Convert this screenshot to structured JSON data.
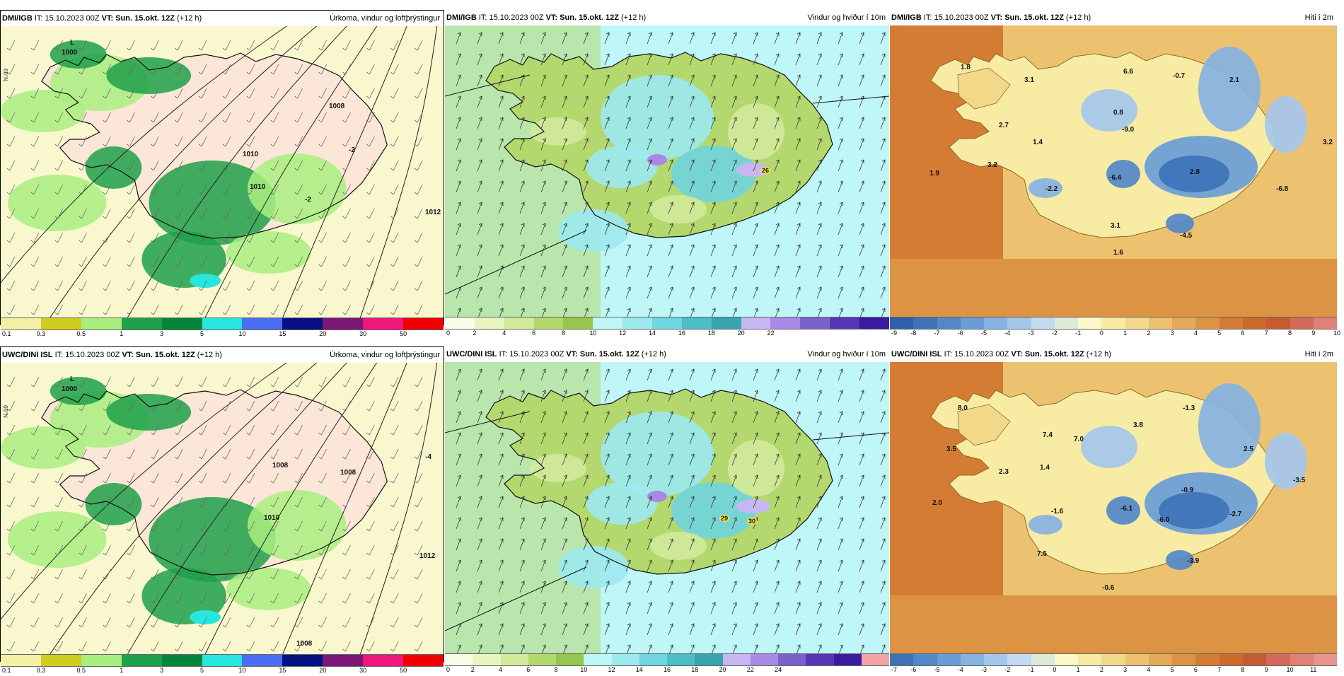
{
  "panels": [
    {
      "id": "p1",
      "model": "DMI/IGB",
      "it": "IT: 15.10.2023 00Z",
      "vt_label": "VT:",
      "vt": "Sun. 15.okt. 12Z",
      "lead": "(+12 h)",
      "title": "Úrkoma, vindur og loftþrýstingur",
      "kind": "precip",
      "legend_colors": [
        "#f3f0a6",
        "#cfcc22",
        "#a9ef80",
        "#1fa04a",
        "#05853c",
        "#27e6e0",
        "#4a6ef2",
        "#071080",
        "#7a1675",
        "#f0167c",
        "#f00000"
      ],
      "legend_ticks": [
        "0.1",
        "0.3",
        "0.5",
        "1",
        "3",
        "5",
        "10",
        "15",
        "20",
        "30",
        "50"
      ],
      "labels": [
        {
          "t": "L"
        },
        {
          "t": "1000"
        },
        {
          "t": "1008"
        },
        {
          "t": "1010"
        },
        {
          "t": "1010"
        },
        {
          "t": "1012"
        },
        {
          "t": "-2"
        },
        {
          "t": "-2"
        }
      ],
      "lat": "66°N"
    },
    {
      "id": "p2",
      "model": "DMI/IGB",
      "it": "IT: 15.10.2023 00Z",
      "vt_label": "VT:",
      "vt": "Sun. 15.okt. 12Z",
      "lead": "(+12 h)",
      "title": "Vindur og hviður í 10m",
      "kind": "wind",
      "legend_colors": [
        "#fcfde8",
        "#e8f5bf",
        "#d2ea9c",
        "#b3d86d",
        "#95c64d",
        "#bff6f8",
        "#9ce9ee",
        "#6fd5de",
        "#4bbec6",
        "#38a5ae",
        "#c6b6f2",
        "#a88ae6",
        "#7a62cc",
        "#5536b5",
        "#3a1aa0"
      ],
      "legend_ticks": [
        "0",
        "2",
        "4",
        "6",
        "8",
        "10",
        "12",
        "14",
        "16",
        "18",
        "20",
        "22"
      ],
      "labels": [
        {
          "t": "26"
        }
      ]
    },
    {
      "id": "p3",
      "model": "DMI/IGB",
      "it": "IT: 15.10.2023 00Z",
      "vt_label": "VT:",
      "vt": "Sun. 15.okt. 12Z",
      "lead": "(+12 h)",
      "title": "Hiti í 2m",
      "kind": "temp",
      "legend_colors": [
        "#2f5fa8",
        "#3f73b8",
        "#5288c8",
        "#6a9dd6",
        "#86b2e2",
        "#a4c7ec",
        "#c2daf2",
        "#dcebd8",
        "#fbf7c6",
        "#f8eba4",
        "#f2d98a",
        "#ecc270",
        "#e4aa58",
        "#dc9344",
        "#d47c34",
        "#cc6a2c",
        "#c65a30",
        "#d46a5a",
        "#e08078"
      ],
      "legend_ticks": [
        "-9",
        "-8",
        "-7",
        "-6",
        "-5",
        "-4",
        "-3",
        "-2",
        "-1",
        "0",
        "1",
        "2",
        "3",
        "4",
        "5",
        "6",
        "7",
        "8",
        "9",
        "10"
      ],
      "labels": [
        {
          "t": "1.8"
        },
        {
          "t": "3.1"
        },
        {
          "t": "6.6"
        },
        {
          "t": "-0.7"
        },
        {
          "t": "2.1"
        },
        {
          "t": "0.8"
        },
        {
          "t": "-9.0"
        },
        {
          "t": "2.7"
        },
        {
          "t": "1.4"
        },
        {
          "t": "3.2"
        },
        {
          "t": "3.2"
        },
        {
          "t": "1.9"
        },
        {
          "t": "-2.2"
        },
        {
          "t": "-6.4"
        },
        {
          "t": "2.8"
        },
        {
          "t": "-6.8"
        },
        {
          "t": "3.1"
        },
        {
          "t": "-4.5"
        },
        {
          "t": "1.6"
        }
      ]
    },
    {
      "id": "p4",
      "model": "UWC/DINI ISL",
      "it": "IT: 15.10.2023 00Z",
      "vt_label": "VT:",
      "vt": "Sun. 15.okt. 12Z",
      "lead": "(+12 h)",
      "title": "Úrkoma, vindur og loftþrýstingur",
      "kind": "precip",
      "legend_colors": [
        "#f3f0a6",
        "#cfcc22",
        "#a9ef80",
        "#1fa04a",
        "#05853c",
        "#27e6e0",
        "#4a6ef2",
        "#071080",
        "#7a1675",
        "#f0167c",
        "#f00000"
      ],
      "legend_ticks": [
        "0.1",
        "0.3",
        "0.5",
        "1",
        "3",
        "5",
        "10",
        "15",
        "20",
        "30",
        "50"
      ],
      "labels": [
        {
          "t": "L"
        },
        {
          "t": "1000"
        },
        {
          "t": "1008"
        },
        {
          "t": "1008"
        },
        {
          "t": "1010"
        },
        {
          "t": "1012"
        },
        {
          "t": "1008"
        },
        {
          "t": "-4"
        }
      ],
      "lat": "66°N"
    },
    {
      "id": "p5",
      "model": "UWC/DINI ISL",
      "it": "IT: 15.10.2023 00Z",
      "vt_label": "VT:",
      "vt": "Sun. 15.okt. 12Z",
      "lead": "(+12 h)",
      "title": "Vindur og hviður í 10m",
      "kind": "wind",
      "legend_colors": [
        "#fcfde8",
        "#e8f5bf",
        "#d2ea9c",
        "#b3d86d",
        "#95c64d",
        "#bff6f8",
        "#9ce9ee",
        "#6fd5de",
        "#4bbec6",
        "#38a5ae",
        "#c6b6f2",
        "#a88ae6",
        "#7a62cc",
        "#5536b5",
        "#3a1aa0",
        "#f2a4a4"
      ],
      "legend_ticks": [
        "0",
        "2",
        "4",
        "6",
        "8",
        "10",
        "12",
        "14",
        "16",
        "18",
        "20",
        "22",
        "24"
      ],
      "labels": [
        {
          "t": "29"
        },
        {
          "t": "30"
        }
      ]
    },
    {
      "id": "p6",
      "model": "UWC/DINI ISL",
      "it": "IT: 15.10.2023 00Z",
      "vt_label": "VT:",
      "vt": "Sun. 15.okt. 12Z",
      "lead": "(+12 h)",
      "title": "Hiti í 2m",
      "kind": "temp",
      "legend_colors": [
        "#3f73b8",
        "#5288c8",
        "#6a9dd6",
        "#86b2e2",
        "#a4c7ec",
        "#c2daf2",
        "#dcebd8",
        "#fbf7c6",
        "#f8eba4",
        "#f2d98a",
        "#ecc270",
        "#e4aa58",
        "#dc9344",
        "#d47c34",
        "#cc6a2c",
        "#c65a30",
        "#d46a5a",
        "#e08078",
        "#e89490"
      ],
      "legend_ticks": [
        "-7",
        "-6",
        "-5",
        "-4",
        "-3",
        "-2",
        "-1",
        "0",
        "1",
        "2",
        "3",
        "4",
        "5",
        "6",
        "7",
        "8",
        "9",
        "10",
        "11"
      ],
      "labels": [
        {
          "t": "8.0"
        },
        {
          "t": "-1.3"
        },
        {
          "t": "3.8"
        },
        {
          "t": "3.5"
        },
        {
          "t": "7.4"
        },
        {
          "t": "7.0"
        },
        {
          "t": "2.5"
        },
        {
          "t": "2.3"
        },
        {
          "t": "1.4"
        },
        {
          "t": "-3.5"
        },
        {
          "t": "-0.9"
        },
        {
          "t": "2.0"
        },
        {
          "t": "-1.6"
        },
        {
          "t": "-6.1"
        },
        {
          "t": "-6.0"
        },
        {
          "t": "-2.7"
        },
        {
          "t": "7.5"
        },
        {
          "t": "-3.9"
        },
        {
          "t": "-0.6"
        }
      ]
    }
  ]
}
